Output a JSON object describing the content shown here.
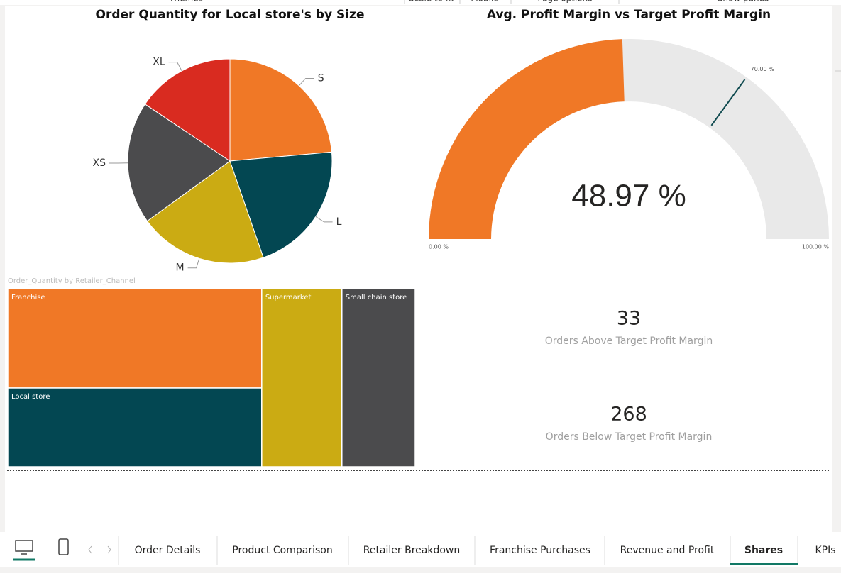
{
  "toolbar": [
    "Themes",
    "Scale to fit",
    "Mobile",
    "Page options",
    "Show panes"
  ],
  "chart_data": [
    {
      "type": "pie",
      "title": "Order Quantity for Local store's by Size",
      "categories": [
        "S",
        "L",
        "M",
        "XS",
        "XL"
      ],
      "values": [
        23.6,
        21.1,
        20.3,
        19.4,
        15.6
      ],
      "colors": [
        "#f07826",
        "#034752",
        "#cbab13",
        "#4b4b4d",
        "#d92b20"
      ]
    },
    {
      "type": "gauge",
      "title": "Avg. Profit Margin vs Target Profit Margin",
      "value": 48.97,
      "value_label": "48.97 %",
      "ylim": [
        0,
        100
      ],
      "yticks": [
        {
          "value": 0,
          "label": "0.00 %"
        },
        {
          "value": 100,
          "label": "100.00 %"
        }
      ],
      "target": {
        "value": 70,
        "label": "70.00 %"
      },
      "color": "#f07826",
      "track_color": "#e9e9e9",
      "target_color": "#0f4a4f"
    },
    {
      "type": "treemap",
      "title": "Order_Quantity  by Retailer_Channel",
      "categories": [
        "Franchise",
        "Local store",
        "Supermarket",
        "Small chain store"
      ],
      "values": [
        34.8,
        27.6,
        19.7,
        18.0
      ],
      "colors": [
        "#f07826",
        "#034752",
        "#cbab13",
        "#4b4b4d"
      ]
    }
  ],
  "cards": [
    {
      "value": 33,
      "label": "Orders Above Target Profit Margin"
    },
    {
      "value": 268,
      "label": "Orders Below Target Profit Margin"
    }
  ],
  "tabs": [
    "Order Details",
    "Product Comparison",
    "Retailer Breakdown",
    "Franchise Purchases",
    "Revenue and Profit",
    "Shares",
    "KPIs"
  ],
  "active_tab": 5
}
